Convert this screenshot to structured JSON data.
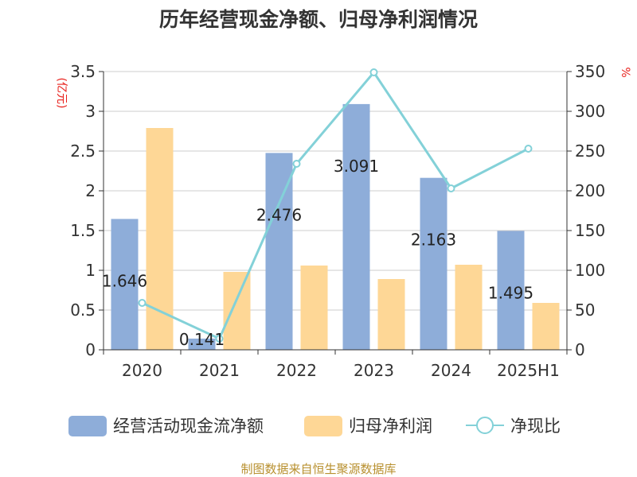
{
  "chart_data": {
    "type": "bar",
    "title": "历年经营现金净额、归母净利润情况",
    "categories": [
      "2020",
      "2021",
      "2022",
      "2023",
      "2024",
      "2025H1"
    ],
    "y_left": {
      "unit": "(亿元)",
      "min": 0,
      "max": 3.5,
      "ticks": [
        "0",
        "0.5",
        "1",
        "1.5",
        "2",
        "2.5",
        "3",
        "3.5"
      ]
    },
    "y_right": {
      "unit": "%",
      "min": 0,
      "max": 350,
      "ticks": [
        "0",
        "50",
        "100",
        "150",
        "200",
        "250",
        "300",
        "350"
      ]
    },
    "grid": true,
    "legend_position": "bottom",
    "series": [
      {
        "name": "经营活动现金流净额",
        "type": "bar",
        "axis": "left",
        "color": "#8eadd9",
        "values": [
          1.646,
          0.141,
          2.476,
          3.091,
          2.163,
          1.495
        ],
        "labels": [
          "1.646",
          "0.141",
          "2.476",
          "3.091",
          "2.163",
          "1.495"
        ]
      },
      {
        "name": "归母净利润",
        "type": "bar",
        "axis": "left",
        "color": "#fed796",
        "values": [
          2.79,
          0.98,
          1.06,
          0.89,
          1.07,
          0.59
        ]
      },
      {
        "name": "净现比",
        "type": "line",
        "axis": "right",
        "color": "#83d1d8",
        "values": [
          59,
          14,
          234,
          349,
          203,
          253
        ]
      }
    ]
  },
  "footer": {
    "source": "制图数据来自恒生聚源数据库"
  }
}
